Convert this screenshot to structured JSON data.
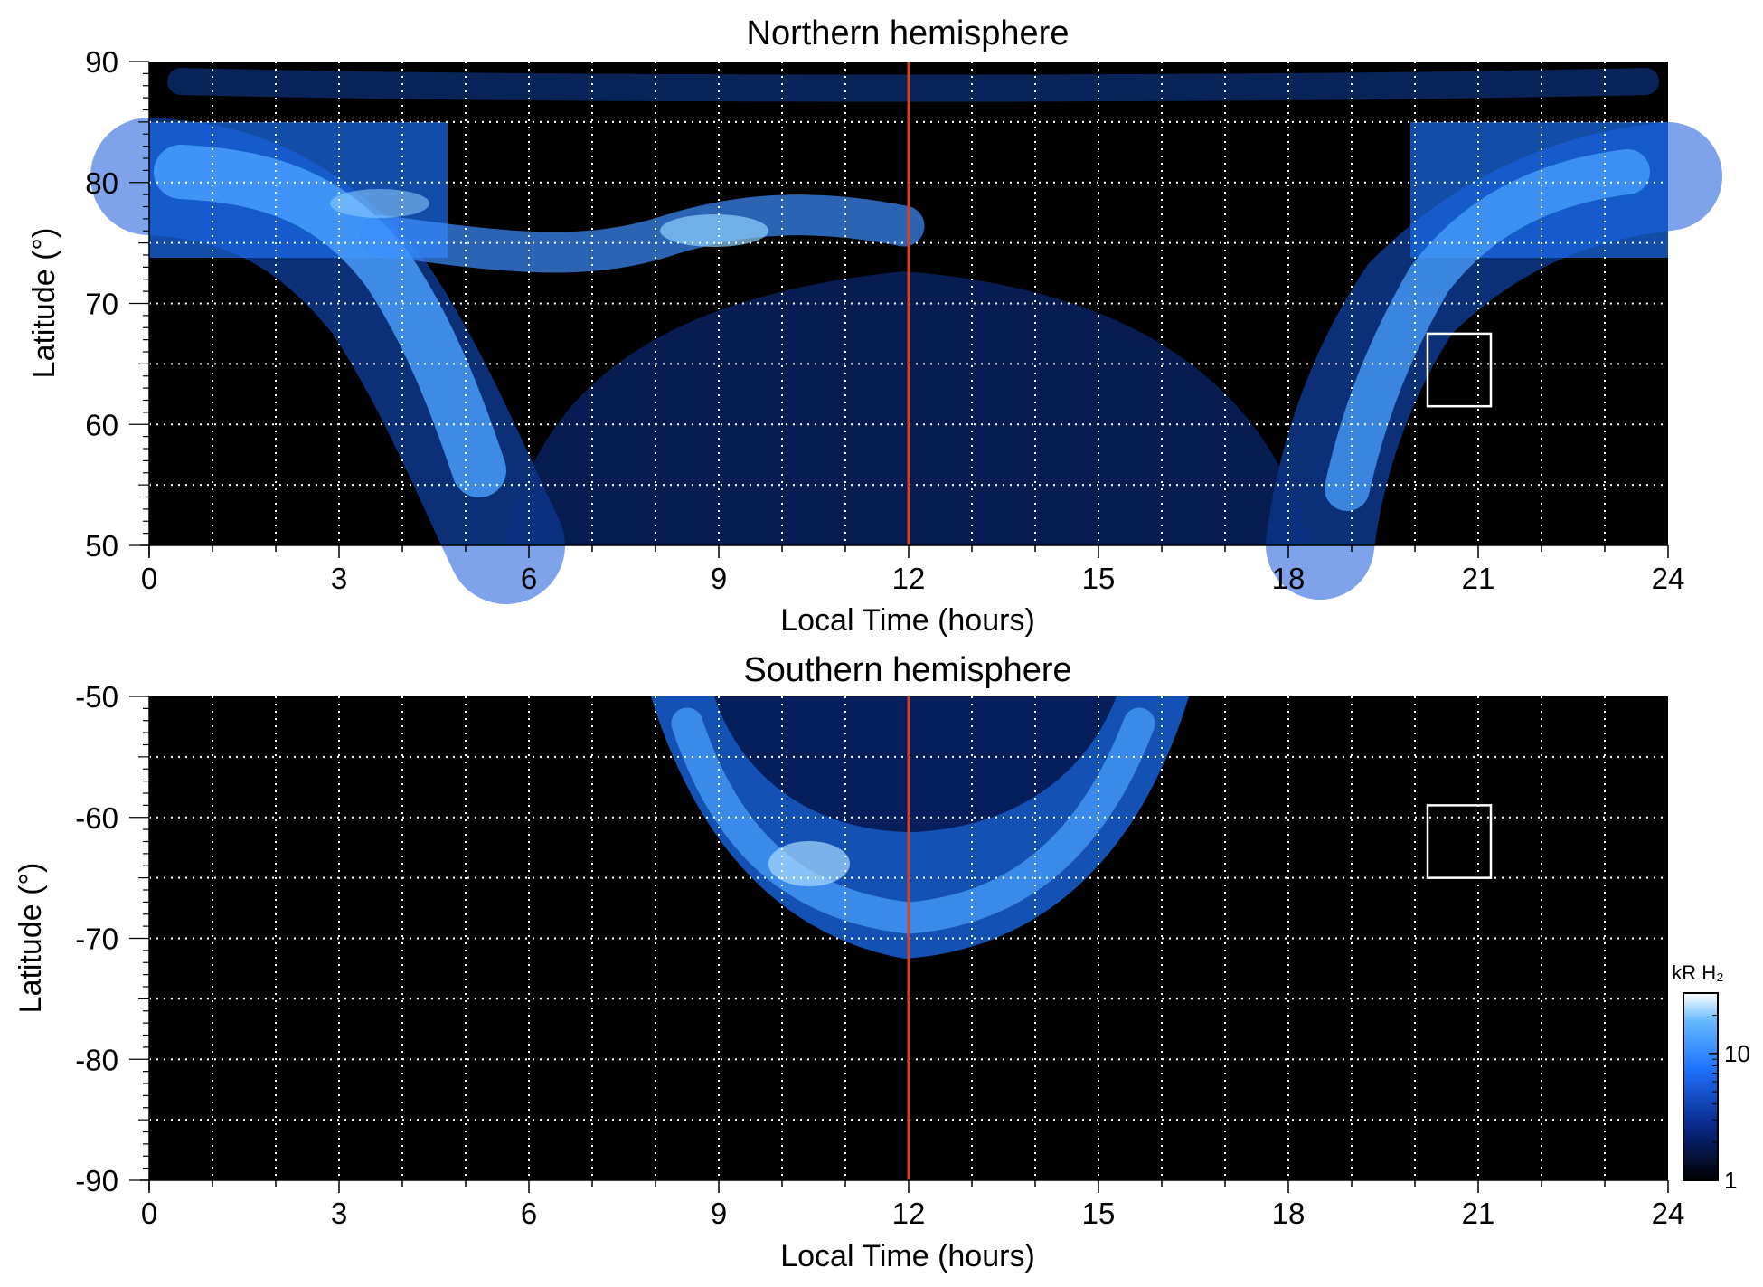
{
  "chart_data": [
    {
      "type": "heatmap",
      "title": "Northern hemisphere",
      "xlabel": "Local Time (hours)",
      "ylabel": "Latitude (°)",
      "xlim": [
        0,
        24
      ],
      "ylim": [
        50,
        90
      ],
      "x_ticks": [
        "0",
        "3",
        "6",
        "9",
        "12",
        "15",
        "18",
        "21",
        "24"
      ],
      "y_ticks": [
        "50",
        "60",
        "70",
        "80",
        "90"
      ],
      "grid": "dotted white, every 1 hour and every 5 degrees",
      "reference_line": {
        "x": 12,
        "color": "#d9421a"
      },
      "highlight_box": {
        "x": [
          20.2,
          21.2
        ],
        "y": [
          61.5,
          67.5
        ]
      },
      "features": [
        {
          "name": "main auroral oval",
          "note": "bright arc from ~80° near 0 LT down to ~50° near 5-6 LT, and from ~50° near 18.5-19.5 LT up to ~80° near 22-24 LT"
        },
        {
          "name": "polar band",
          "note": "bright band ~74-86° latitude for 0-3 LT and 21-24 LT"
        },
        {
          "name": "dayside arc",
          "note": "brightest around 8-9 LT near 75-77° latitude"
        }
      ]
    },
    {
      "type": "heatmap",
      "title": "Southern hemisphere",
      "xlabel": "Local Time (hours)",
      "ylabel": "Latitude (°)",
      "xlim": [
        0,
        24
      ],
      "ylim": [
        -90,
        -50
      ],
      "x_ticks": [
        "0",
        "3",
        "6",
        "9",
        "12",
        "15",
        "18",
        "21",
        "24"
      ],
      "y_ticks": [
        "-90",
        "-80",
        "-70",
        "-60",
        "-50"
      ],
      "grid": "dotted white, every 1 hour and every 5 degrees",
      "reference_line": {
        "x": 12,
        "color": "#d9421a"
      },
      "highlight_box": {
        "x": [
          20.2,
          21.2
        ],
        "y": [
          -65,
          -59
        ]
      },
      "features": [
        {
          "name": "auroral oval",
          "note": "bowl-shaped arc spanning ~8-16.5 LT, reaching ~-72° at 12 LT; brightest near 10-11 LT around -65°"
        }
      ]
    }
  ],
  "colorbar": {
    "title": "kR H₂",
    "scale": "log",
    "range": [
      1,
      30
    ],
    "tick_labels": [
      "1",
      "10"
    ],
    "colors": [
      "#000000",
      "#0a2a8c",
      "#1e73ff",
      "#66b8ff",
      "#ffffff"
    ]
  }
}
